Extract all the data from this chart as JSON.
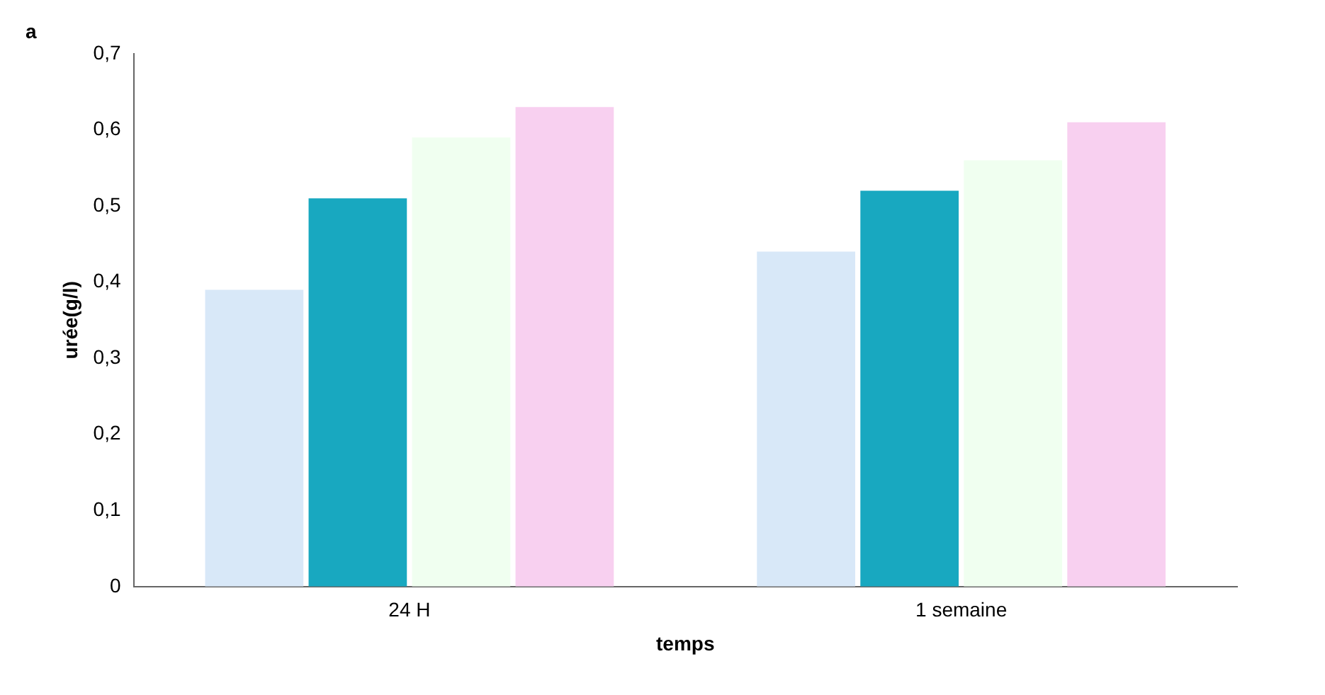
{
  "chart_data": {
    "type": "bar",
    "xlabel": "temps",
    "ylabel": "urée(g/l)",
    "annotations": [
      "a"
    ],
    "categories": [
      "24 H",
      "1 semaine"
    ],
    "series": [
      {
        "color": "#d8e8f8",
        "values": [
          0.39,
          0.44
        ]
      },
      {
        "color": "#18a8c0",
        "values": [
          0.51,
          0.52
        ]
      },
      {
        "color": "#f0fff0",
        "values": [
          0.59,
          0.56
        ]
      },
      {
        "color": "#f8d0f0",
        "values": [
          0.63,
          0.61
        ]
      }
    ],
    "ylim": [
      0,
      0.7
    ],
    "yticks": [
      {
        "value": 0,
        "label": "0"
      },
      {
        "value": 0.1,
        "label": "0,1"
      },
      {
        "value": 0.2,
        "label": "0,2"
      },
      {
        "value": 0.3,
        "label": "0,3"
      },
      {
        "value": 0.4,
        "label": "0,4"
      },
      {
        "value": 0.5,
        "label": "0,5"
      },
      {
        "value": 0.6,
        "label": "0,6"
      },
      {
        "value": 0.7,
        "label": "0,7"
      }
    ],
    "grid": false,
    "legend": false
  }
}
